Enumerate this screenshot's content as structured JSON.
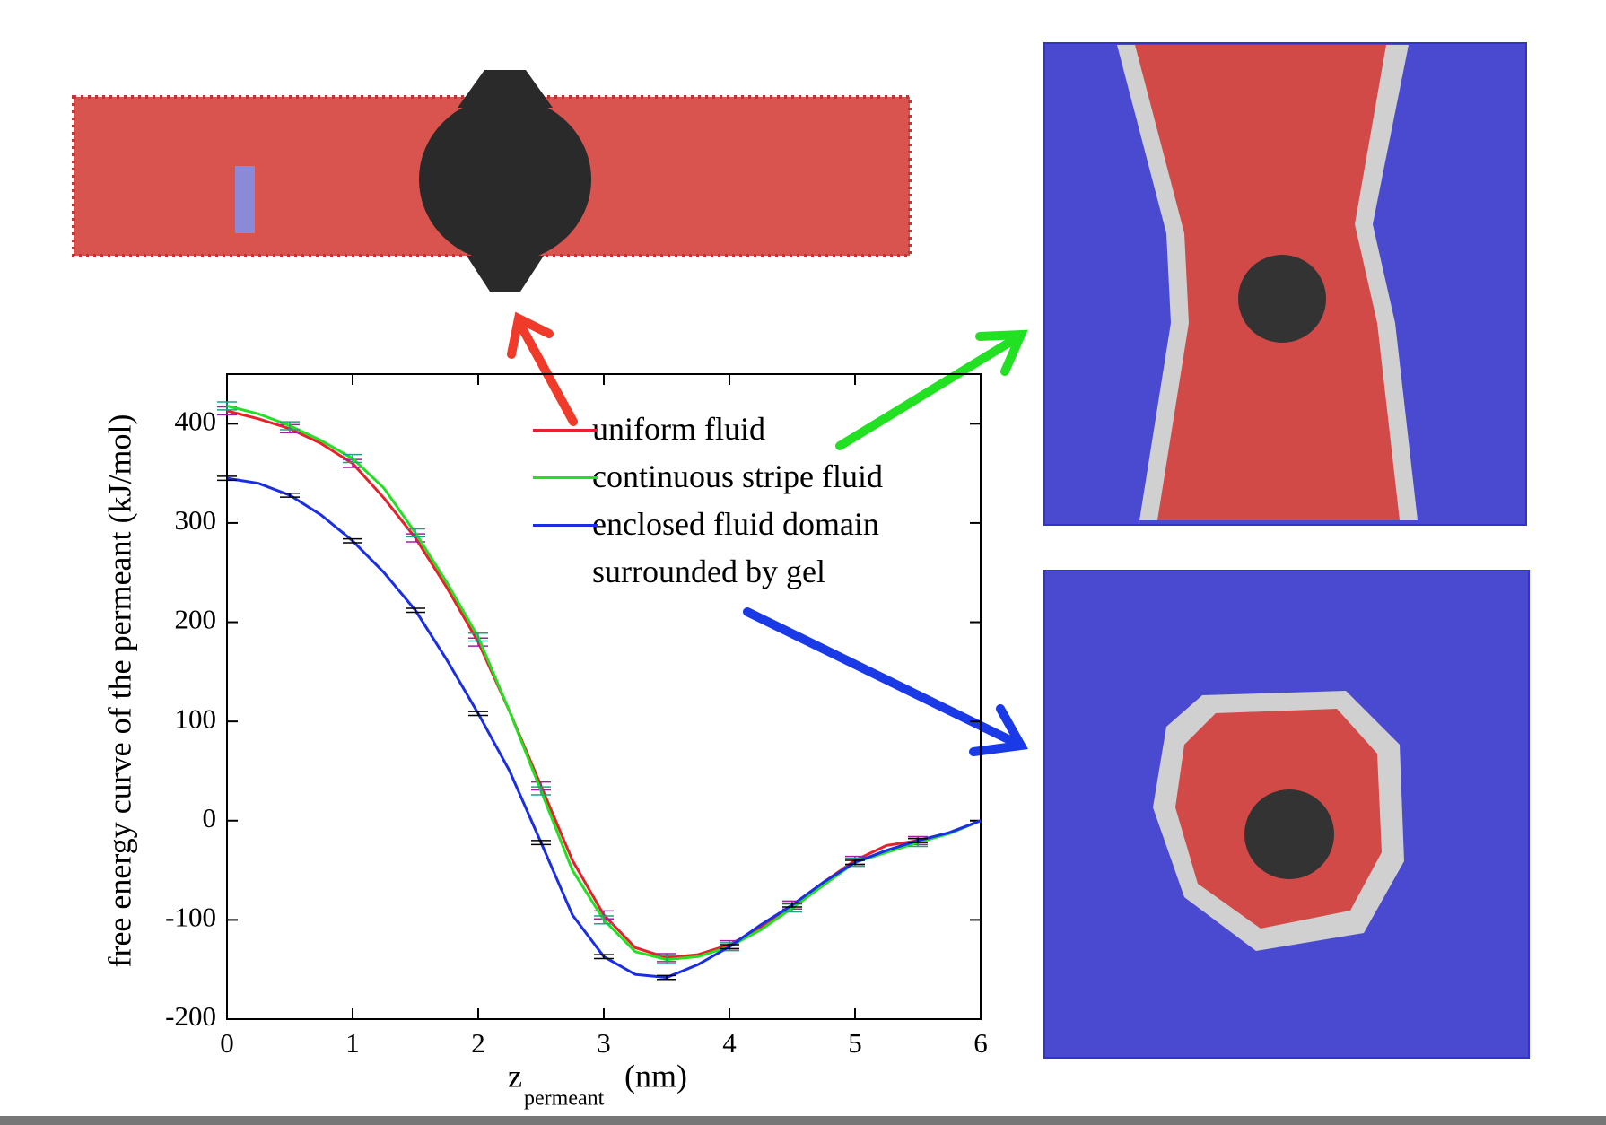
{
  "chart_data": {
    "type": "line",
    "ylabel": "free energy curve of the permeant (kJ/mol)",
    "xlabel": "z",
    "xlabel_subscript": "permeant",
    "xlabel_unit": "(nm)",
    "x": [
      0,
      0.25,
      0.5,
      0.75,
      1,
      1.25,
      1.5,
      1.75,
      2,
      2.25,
      2.5,
      2.75,
      3,
      3.25,
      3.5,
      3.75,
      4,
      4.25,
      4.5,
      4.75,
      5,
      5.25,
      5.5,
      5.75,
      6
    ],
    "series": [
      {
        "name": "uniform fluid",
        "color": "#e8202a",
        "values": [
          413,
          405,
          395,
          380,
          360,
          325,
          285,
          235,
          180,
          110,
          35,
          -40,
          -95,
          -128,
          -138,
          -135,
          -125,
          -108,
          -85,
          -62,
          -40,
          -25,
          -20,
          -13,
          0
        ],
        "errors": [
          4,
          null,
          4,
          null,
          4,
          null,
          4,
          null,
          4,
          null,
          4,
          null,
          4,
          null,
          4,
          null,
          4,
          null,
          4,
          null,
          4,
          null,
          4,
          null,
          null
        ]
      },
      {
        "name": "continuous stripe fluid",
        "color": "#22e022",
        "values": [
          418,
          410,
          398,
          383,
          365,
          335,
          290,
          240,
          185,
          110,
          30,
          -50,
          -100,
          -132,
          -140,
          -137,
          -127,
          -110,
          -88,
          -65,
          -42,
          -32,
          -22,
          -13,
          0
        ],
        "errors": [
          4,
          null,
          4,
          null,
          4,
          null,
          4,
          null,
          4,
          null,
          4,
          null,
          4,
          null,
          4,
          null,
          4,
          null,
          4,
          null,
          4,
          null,
          4,
          null,
          null
        ]
      },
      {
        "name": "enclosed fluid domain surrounded by gel",
        "color": "#1a2ee8",
        "values": [
          345,
          340,
          328,
          308,
          282,
          250,
          212,
          162,
          108,
          50,
          -22,
          -95,
          -137,
          -155,
          -158,
          -145,
          -127,
          -105,
          -85,
          -62,
          -42,
          -30,
          -20,
          -12,
          0
        ],
        "errors": [
          2,
          null,
          2,
          null,
          2,
          null,
          2,
          null,
          2,
          null,
          2,
          null,
          2,
          null,
          2,
          null,
          2,
          null,
          2,
          null,
          2,
          null,
          2,
          null,
          null
        ]
      }
    ],
    "xlim": [
      0,
      6
    ],
    "xticks": [
      0,
      1,
      2,
      3,
      4,
      5,
      6
    ],
    "ylim": [
      -200,
      450
    ],
    "yticks": [
      -200,
      -100,
      0,
      100,
      200,
      300,
      400
    ]
  }
}
